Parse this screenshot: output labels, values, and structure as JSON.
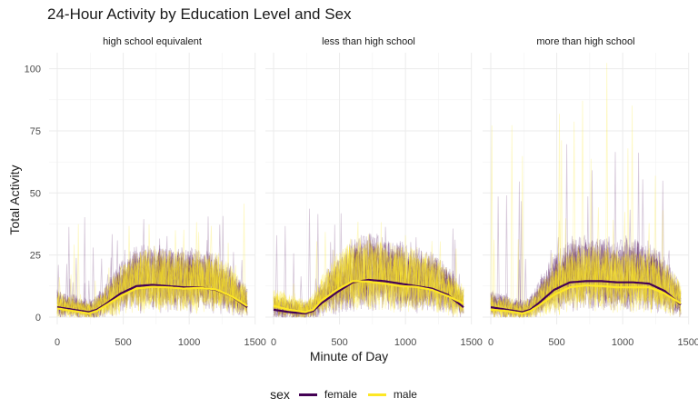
{
  "chart_data": {
    "type": "line",
    "title": "24-Hour Activity by Education Level and Sex",
    "xlabel": "Minute of Day",
    "ylabel": "Total Activity",
    "xlim": [
      0,
      1440
    ],
    "ylim": [
      0,
      105
    ],
    "x_ticks": [
      0,
      500,
      1000,
      1500
    ],
    "y_ticks": [
      0,
      25,
      50,
      75,
      100
    ],
    "grid": true,
    "legend": {
      "title": "sex",
      "position": "bottom",
      "entries": [
        {
          "name": "female",
          "color": "#440154"
        },
        {
          "name": "male",
          "color": "#FDE725"
        }
      ]
    },
    "facets": [
      {
        "label": "high school equivalent",
        "smooth_x": [
          0,
          120,
          240,
          300,
          360,
          480,
          600,
          720,
          840,
          960,
          1080,
          1200,
          1320,
          1440
        ],
        "series": [
          {
            "name": "female",
            "values": [
              4,
              3,
              2,
              3,
              5,
              9.5,
              12.5,
              13,
              12.5,
              12,
              12,
              11,
              8.5,
              4
            ]
          },
          {
            "name": "male",
            "values": [
              3.5,
              2.5,
              1.5,
              2.5,
              4.5,
              8.5,
              11.5,
              12.2,
              12,
              11.5,
              11.8,
              11.2,
              8.5,
              4.5
            ]
          }
        ],
        "raw_band": {
          "max_female": 43,
          "max_male": 46
        }
      },
      {
        "label": "less than high school",
        "smooth_x": [
          0,
          120,
          240,
          300,
          360,
          480,
          600,
          720,
          840,
          960,
          1080,
          1200,
          1320,
          1440
        ],
        "series": [
          {
            "name": "female",
            "values": [
              3,
              2,
              1.5,
              2.5,
              5.5,
              10,
              14,
              15,
              14.5,
              13.5,
              12.5,
              11.5,
              9,
              4
            ]
          },
          {
            "name": "male",
            "values": [
              4.5,
              3,
              2,
              3,
              6.5,
              11,
              14.5,
              14.3,
              13.5,
              12.5,
              12.2,
              11,
              8.5,
              5.5
            ]
          }
        ],
        "raw_band": {
          "max_female": 44,
          "max_male": 40
        }
      },
      {
        "label": "more than high school",
        "smooth_x": [
          0,
          120,
          240,
          300,
          360,
          480,
          600,
          720,
          840,
          960,
          1080,
          1200,
          1320,
          1440
        ],
        "series": [
          {
            "name": "female",
            "values": [
              4,
              3,
              2,
              3,
              5.5,
              11,
              14,
              14.5,
              14.5,
              14,
              14,
              13.5,
              10.5,
              5
            ]
          },
          {
            "name": "male",
            "values": [
              3,
              2.5,
              1.5,
              2.5,
              4.5,
              9,
              12,
              12.8,
              12.5,
              12,
              12,
              12,
              9.5,
              5.5
            ]
          }
        ],
        "raw_band": {
          "max_female": 70,
          "max_male": 103
        }
      }
    ]
  }
}
